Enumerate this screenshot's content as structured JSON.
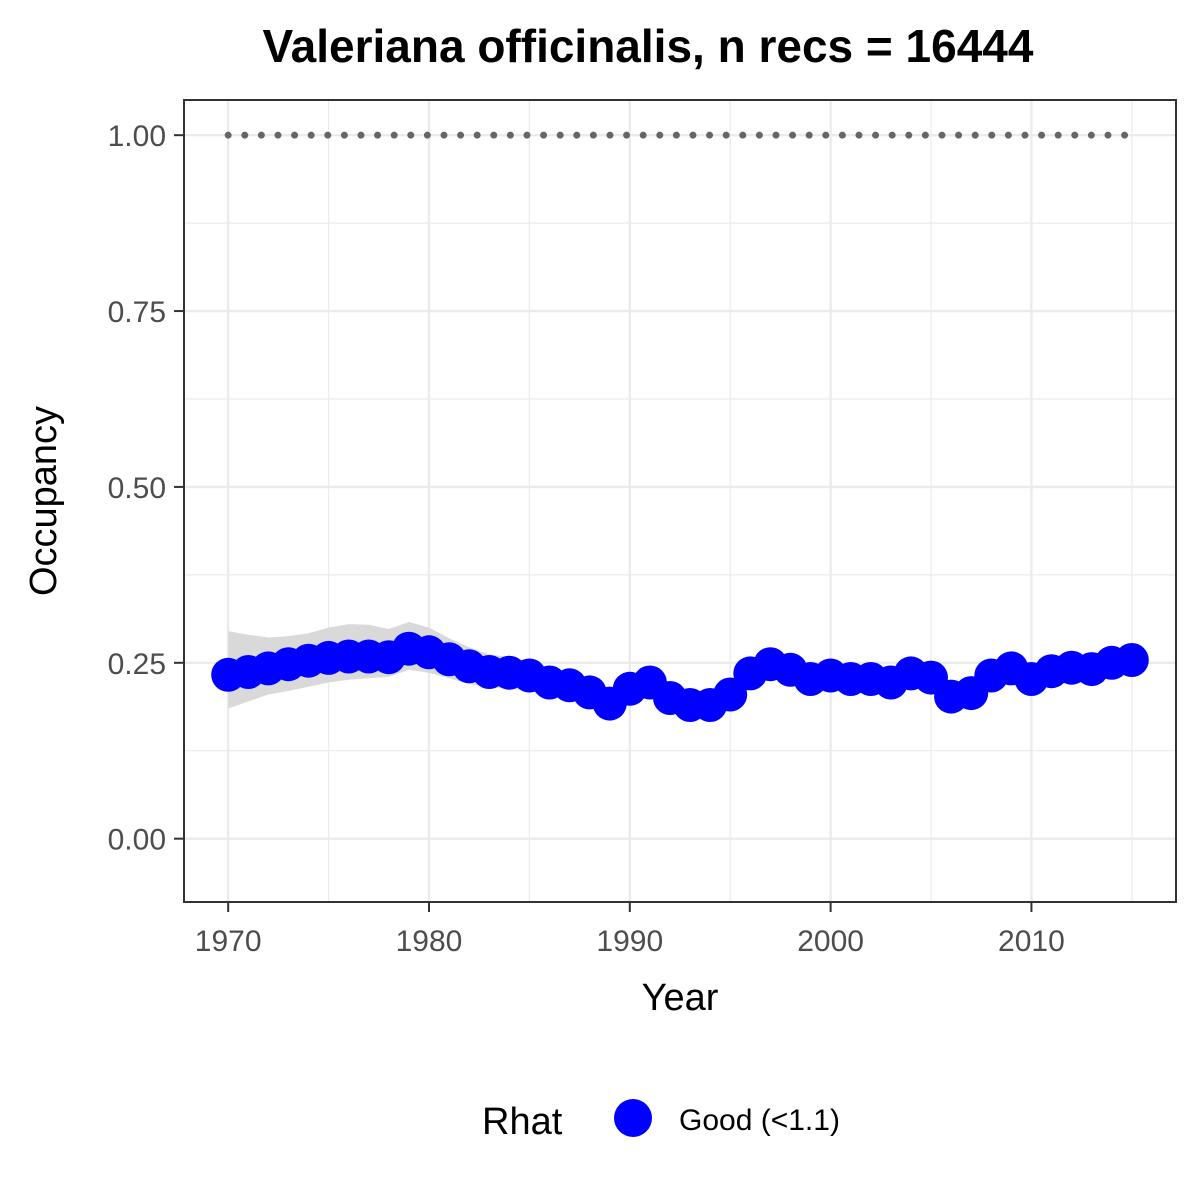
{
  "chart_data": {
    "type": "line",
    "title": "Valeriana officinalis, n recs = 16444",
    "xlabel": "Year",
    "ylabel": "Occupancy",
    "xlim": [
      1967.8,
      2017.2
    ],
    "ylim": [
      -0.09,
      1.05
    ],
    "x_ticks": [
      1970,
      1980,
      1990,
      2000,
      2010
    ],
    "x_tick_labels": [
      "1970",
      "1980",
      "1990",
      "2000",
      "2010"
    ],
    "y_ticks": [
      0,
      0.25,
      0.5,
      0.75,
      1.0
    ],
    "y_tick_labels": [
      "0.00",
      "0.25",
      "0.50",
      "0.75",
      "1.00"
    ],
    "grid": true,
    "legend": {
      "title": "Rhat",
      "position": "bottom",
      "entries": [
        "Good (<1.1)"
      ]
    },
    "colors": {
      "series": "#0000ff",
      "ribbon": "#d9d9d9",
      "reference": "#666666",
      "grid": "#ebebeb",
      "panel_border": "#333333"
    },
    "series": [
      {
        "name": "Good (<1.1)",
        "x": [
          1970,
          1971,
          1972,
          1973,
          1974,
          1975,
          1976,
          1977,
          1978,
          1979,
          1980,
          1981,
          1982,
          1983,
          1984,
          1985,
          1986,
          1987,
          1988,
          1989,
          1990,
          1991,
          1992,
          1993,
          1994,
          1995,
          1996,
          1997,
          1998,
          1999,
          2000,
          2001,
          2002,
          2003,
          2004,
          2005,
          2006,
          2007,
          2008,
          2009,
          2010,
          2011,
          2012,
          2013,
          2014,
          2015
        ],
        "y": [
          0.233,
          0.237,
          0.242,
          0.248,
          0.253,
          0.257,
          0.259,
          0.259,
          0.258,
          0.27,
          0.265,
          0.255,
          0.245,
          0.237,
          0.236,
          0.232,
          0.222,
          0.218,
          0.208,
          0.192,
          0.213,
          0.222,
          0.2,
          0.19,
          0.19,
          0.205,
          0.235,
          0.248,
          0.24,
          0.227,
          0.232,
          0.227,
          0.227,
          0.222,
          0.235,
          0.229,
          0.202,
          0.207,
          0.232,
          0.242,
          0.227,
          0.238,
          0.243,
          0.241,
          0.25,
          0.254
        ],
        "lower": [
          0.185,
          0.195,
          0.205,
          0.21,
          0.216,
          0.222,
          0.226,
          0.228,
          0.23,
          0.24,
          0.236,
          0.228,
          0.22,
          0.215,
          0.213,
          0.21,
          0.203,
          0.198,
          0.19,
          0.178,
          0.196,
          0.205,
          0.186,
          0.178,
          0.178,
          0.19,
          0.218,
          0.232,
          0.224,
          0.212,
          0.217,
          0.212,
          0.212,
          0.208,
          0.22,
          0.214,
          0.188,
          0.193,
          0.216,
          0.226,
          0.212,
          0.222,
          0.227,
          0.225,
          0.234,
          0.238
        ],
        "upper": [
          0.295,
          0.29,
          0.286,
          0.288,
          0.292,
          0.3,
          0.305,
          0.304,
          0.298,
          0.308,
          0.3,
          0.285,
          0.272,
          0.262,
          0.258,
          0.253,
          0.242,
          0.236,
          0.226,
          0.208,
          0.23,
          0.24,
          0.214,
          0.202,
          0.202,
          0.22,
          0.252,
          0.264,
          0.256,
          0.242,
          0.247,
          0.242,
          0.242,
          0.236,
          0.25,
          0.244,
          0.216,
          0.221,
          0.248,
          0.258,
          0.242,
          0.254,
          0.259,
          0.257,
          0.266,
          0.27
        ]
      }
    ],
    "reference_line": {
      "y": 1.0,
      "x": [
        1970,
        2015
      ]
    }
  }
}
